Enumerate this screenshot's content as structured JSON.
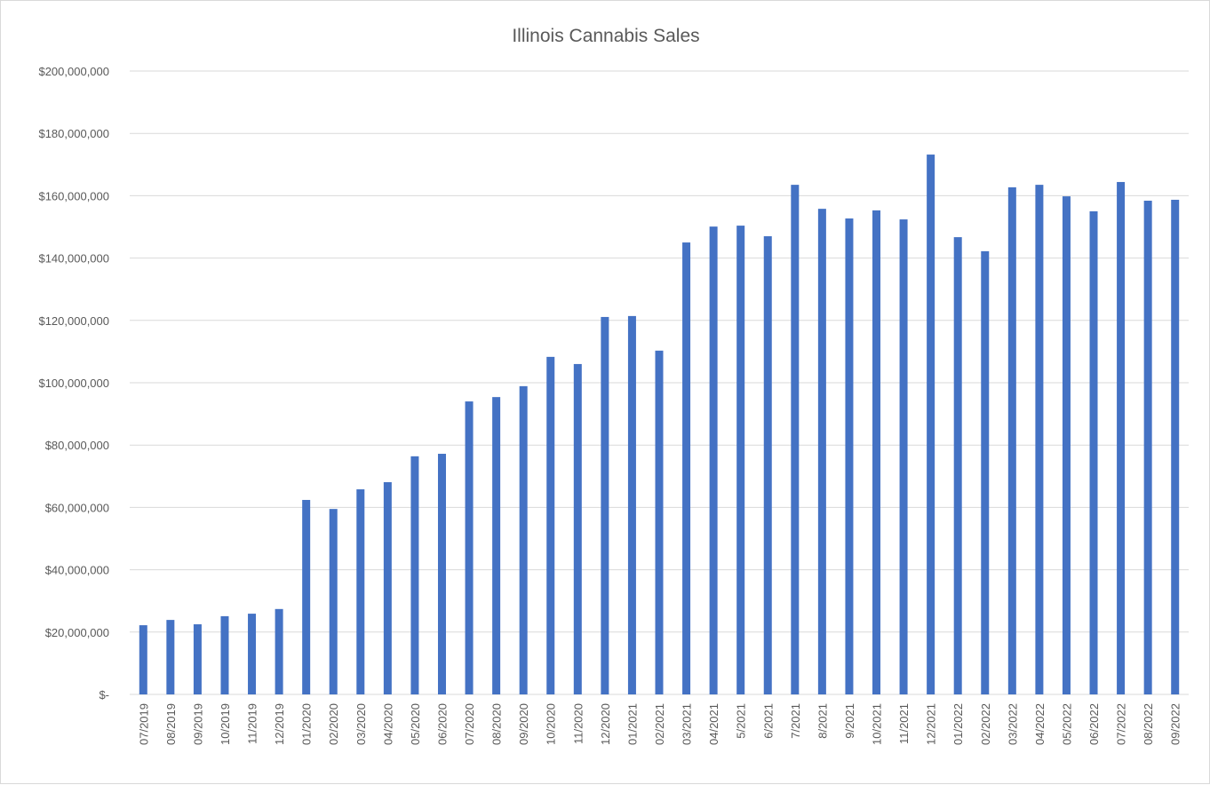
{
  "chart_data": {
    "type": "bar",
    "title": "Illinois Cannabis Sales",
    "xlabel": "",
    "ylabel": "",
    "ylim": [
      0,
      200000000
    ],
    "yticks": [
      0,
      20000000,
      40000000,
      60000000,
      80000000,
      100000000,
      120000000,
      140000000,
      160000000,
      180000000,
      200000000
    ],
    "ytick_labels": [
      "$-",
      "$20,000,000",
      "$40,000,000",
      "$60,000,000",
      "$80,000,000",
      "$100,000,000",
      "$120,000,000",
      "$140,000,000",
      "$160,000,000",
      "$180,000,000",
      "$200,000,000"
    ],
    "grid": true,
    "legend": "none",
    "bar_color": "#4472c4",
    "categories": [
      "07/2019",
      "08/2019",
      "09/2019",
      "10/2019",
      "11/2019",
      "12/2019",
      "01/2020",
      "02/2020",
      "03/2020",
      "04/2020",
      "05/2020",
      "06/2020",
      "07/2020",
      "08/2020",
      "09/2020",
      "10/2020",
      "11/2020",
      "12/2020",
      "01/2021",
      "02/2021",
      "03/2021",
      "04/2021",
      "5/2021",
      "6/2021",
      "7/2021",
      "8/2021",
      "9/2021",
      "10/2021",
      "11/2021",
      "12/2021",
      "01/2022",
      "02/2022",
      "03/2022",
      "04/2022",
      "05/2022",
      "06/2022",
      "07/2022",
      "08/2022",
      "09/2022"
    ],
    "values": [
      22200000,
      23900000,
      22500000,
      25100000,
      25900000,
      27400000,
      62400000,
      59500000,
      65800000,
      68100000,
      76400000,
      77200000,
      94000000,
      95400000,
      98900000,
      108300000,
      106000000,
      121100000,
      121400000,
      110300000,
      145000000,
      150100000,
      150400000,
      147000000,
      163500000,
      155800000,
      152700000,
      155300000,
      152400000,
      173200000,
      146700000,
      142200000,
      162700000,
      163500000,
      159800000,
      155000000,
      164400000,
      158400000,
      158700000
    ]
  }
}
